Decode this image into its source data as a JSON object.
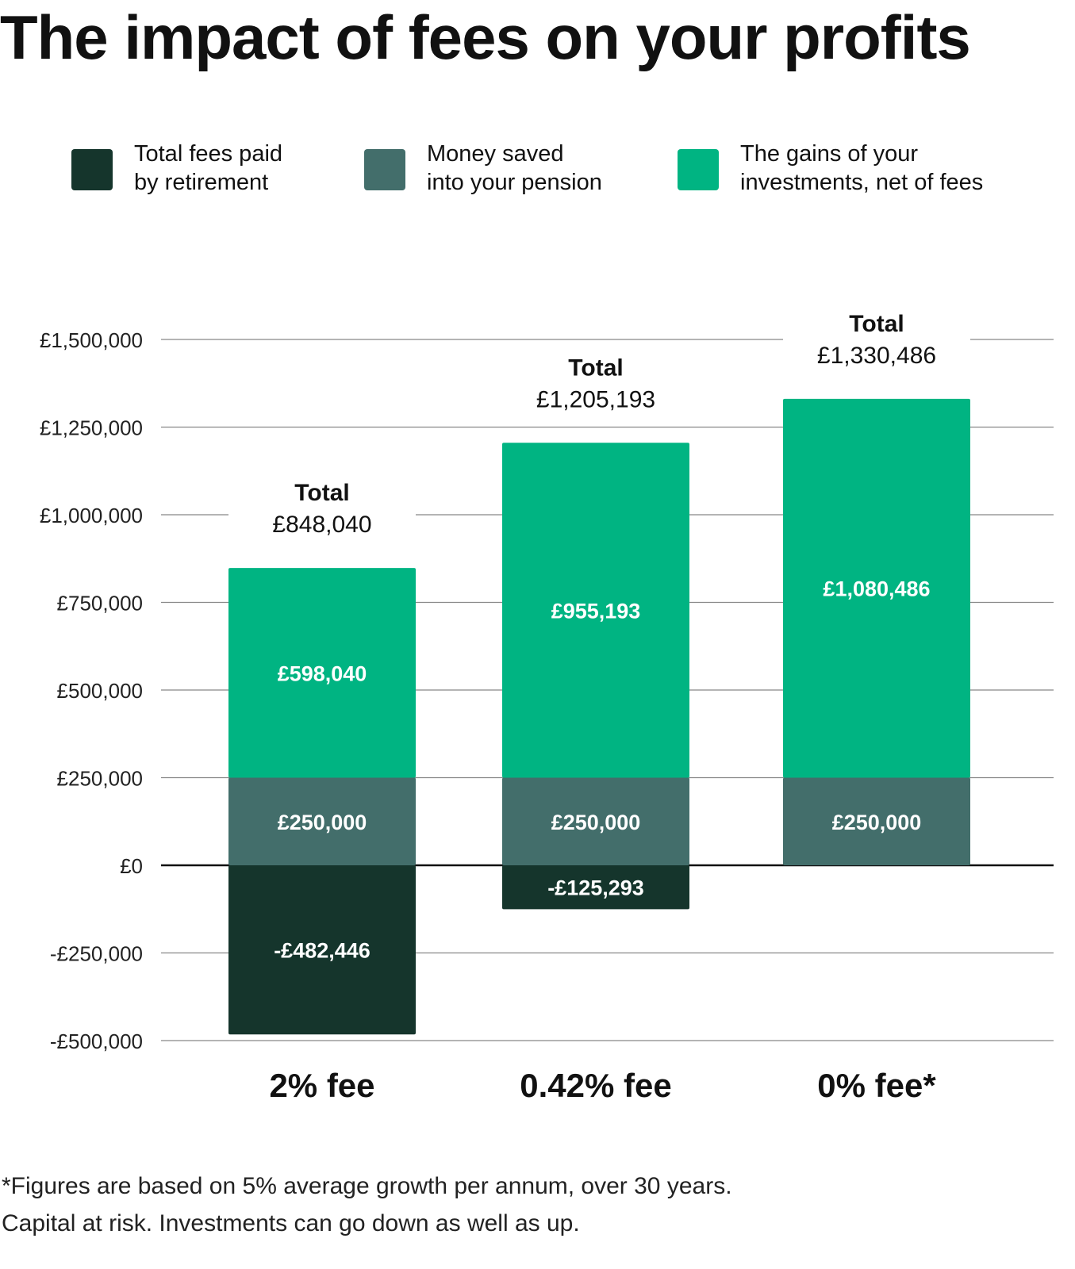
{
  "title": "The impact of fees on your profits",
  "legend": [
    {
      "line1": "Total fees paid",
      "line2": "by retirement",
      "color": "#15352c"
    },
    {
      "line1": "Money saved",
      "line2": "into your pension",
      "color": "#436e6b"
    },
    {
      "line1": "The gains of your",
      "line2": "investments, net of fees",
      "color": "#00b482"
    }
  ],
  "chart_data": {
    "type": "bar",
    "stacked": true,
    "categories": [
      "2% fee",
      "0.42% fee",
      "0% fee*"
    ],
    "series": [
      {
        "name": "Total fees paid by retirement",
        "values": [
          -482446,
          -125293,
          0
        ],
        "labels": [
          "-£482,446",
          "-£125,293",
          ""
        ],
        "color": "#15352c"
      },
      {
        "name": "Money saved into your pension",
        "values": [
          250000,
          250000,
          250000
        ],
        "labels": [
          "£250,000",
          "£250,000",
          "£250,000"
        ],
        "color": "#436e6b"
      },
      {
        "name": "The gains of your investments, net of fees",
        "values": [
          598040,
          955193,
          1080486
        ],
        "labels": [
          "£598,040",
          "£955,193",
          "£1,080,486"
        ],
        "color": "#00b482"
      }
    ],
    "totals": [
      {
        "label": "Total",
        "value": "£848,040"
      },
      {
        "label": "Total",
        "value": "£1,205,193"
      },
      {
        "label": "Total",
        "value": "£1,330,486"
      }
    ],
    "y_ticks": [
      {
        "value": 1500000,
        "label": "£1,500,000"
      },
      {
        "value": 1250000,
        "label": "£1,250,000"
      },
      {
        "value": 1000000,
        "label": "£1,000,000"
      },
      {
        "value": 750000,
        "label": "£750,000"
      },
      {
        "value": 500000,
        "label": "£500,000"
      },
      {
        "value": 250000,
        "label": "£250,000"
      },
      {
        "value": 0,
        "label": "£0"
      },
      {
        "value": -250000,
        "label": "-£250,000"
      },
      {
        "value": -500000,
        "label": "-£500,000"
      }
    ],
    "ylim": [
      -500000,
      1500000
    ],
    "grid": true,
    "legend_position": "top"
  },
  "footer": {
    "line1": "*Figures are based on 5% average growth per annum, over 30 years.",
    "line2": "Capital at risk. Investments can go down as well as up."
  }
}
